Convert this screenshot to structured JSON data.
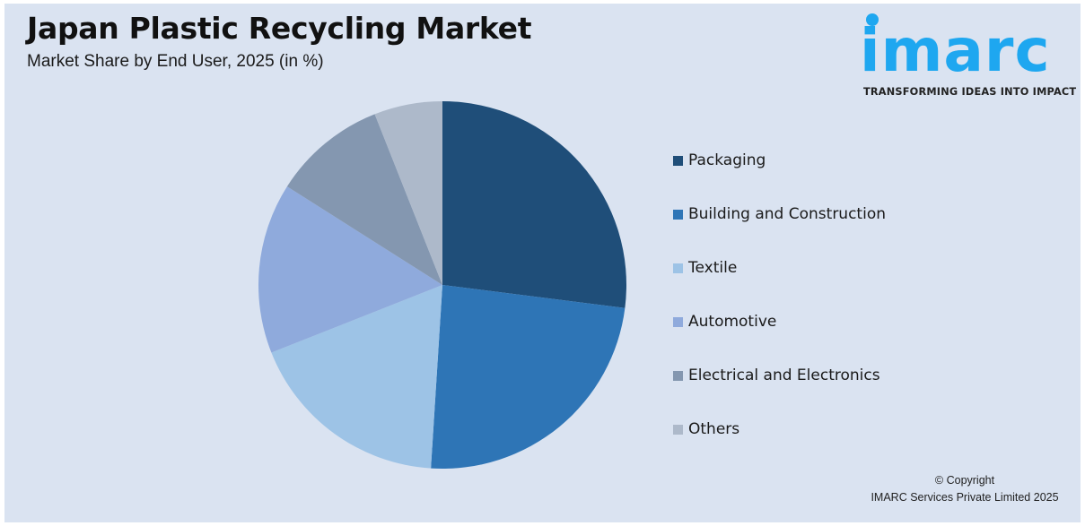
{
  "header": {
    "title": "Japan Plastic Recycling Market",
    "subtitle": "Market Share by End User, 2025 (in %)"
  },
  "logo": {
    "word": "imarc",
    "tagline": "TRANSFORMING IDEAS INTO IMPACT",
    "color": "#1ea7f0"
  },
  "footer": {
    "line1": "© Copyright",
    "line2": "IMARC Services Private Limited 2025"
  },
  "chart_data": {
    "type": "pie",
    "title": "Japan Plastic Recycling Market",
    "subtitle": "Market Share by End User, 2025 (in %)",
    "categories": [
      "Packaging",
      "Building and Construction",
      "Textile",
      "Automotive",
      "Electrical and Electronics",
      "Others"
    ],
    "values": [
      27,
      24,
      18,
      15,
      10,
      6
    ],
    "colors": [
      "#1f4e79",
      "#2e75b6",
      "#9dc3e6",
      "#8faadc",
      "#8497b0",
      "#adb9ca"
    ],
    "start_angle_deg": 0,
    "direction": "clockwise",
    "data_labels": false,
    "legend_position": "right"
  }
}
